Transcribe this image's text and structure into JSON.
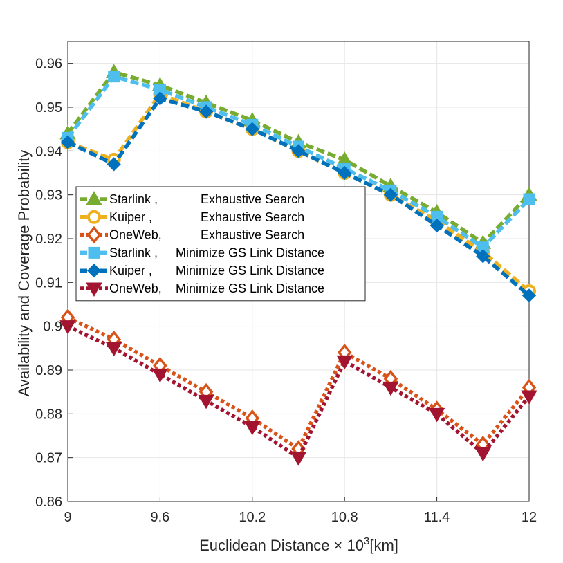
{
  "chart_data": {
    "type": "line",
    "title": "",
    "xlabel": "Euclidean Distance × 10",
    "xlabel_exponent": "3",
    "xlabel_unit": "[km]",
    "ylabel": "Availability and Coverage Probability",
    "xlim": [
      9,
      12
    ],
    "ylim": [
      0.86,
      0.965
    ],
    "xticks": [
      9,
      9.6,
      10.2,
      10.8,
      11.4,
      12
    ],
    "xtick_labels": [
      "9",
      "9.6",
      "10.2",
      "10.8",
      "11.4",
      "12"
    ],
    "yticks": [
      0.86,
      0.87,
      0.88,
      0.89,
      0.9,
      0.91,
      0.92,
      0.93,
      0.94,
      0.95,
      0.96
    ],
    "ytick_labels": [
      "0.86",
      "0.87",
      "0.88",
      "0.89",
      "0.9",
      "0.91",
      "0.92",
      "0.93",
      "0.94",
      "0.95",
      "0.96"
    ],
    "grid": true,
    "legend_position": "middle-left",
    "x": [
      9,
      9.3,
      9.6,
      9.9,
      10.2,
      10.5,
      10.8,
      11.1,
      11.4,
      11.7,
      12
    ],
    "series": [
      {
        "name": "Starlink ,        Exhaustive Search",
        "legend_label": "Starlink ,",
        "legend_method": "Exhaustive Search",
        "color": "#77AC30",
        "marker": "triangle-up",
        "line": "dashed",
        "values": [
          0.944,
          0.958,
          0.955,
          0.951,
          0.947,
          0.942,
          0.938,
          0.932,
          0.926,
          0.919,
          0.93
        ]
      },
      {
        "name": "Kuiper  ,        Exhaustive Search",
        "legend_label": "Kuiper  ,",
        "legend_method": "Exhaustive Search",
        "color": "#EDB120",
        "marker": "circle",
        "line": "dashed",
        "values": [
          0.942,
          0.938,
          0.953,
          0.949,
          0.945,
          0.94,
          0.935,
          0.93,
          0.924,
          0.917,
          0.908
        ]
      },
      {
        "name": "OneWeb,        Exhaustive Search",
        "legend_label": "OneWeb,",
        "legend_method": "Exhaustive Search",
        "color": "#D95319",
        "marker": "diamond",
        "line": "dotted",
        "values": [
          0.902,
          0.897,
          0.891,
          0.885,
          0.879,
          0.872,
          0.894,
          0.888,
          0.881,
          0.873,
          0.886
        ]
      },
      {
        "name": "Starlink ,  Minimize GS Link Distance",
        "legend_label": "Starlink ,",
        "legend_method": "Minimize GS Link Distance",
        "color": "#4DBEEE",
        "marker": "square",
        "line": "dashed",
        "values": [
          0.943,
          0.957,
          0.954,
          0.95,
          0.946,
          0.941,
          0.936,
          0.931,
          0.925,
          0.918,
          0.929
        ]
      },
      {
        "name": "Kuiper  , Minimize GS Link Distance",
        "legend_label": "Kuiper  ,",
        "legend_method": "Minimize GS Link Distance",
        "color": "#0072BD",
        "marker": "x-diamond",
        "line": "dashed",
        "values": [
          0.942,
          0.937,
          0.952,
          0.949,
          0.945,
          0.94,
          0.935,
          0.93,
          0.923,
          0.916,
          0.907
        ]
      },
      {
        "name": "OneWeb, Minimize GS Link Distance",
        "legend_label": "OneWeb,",
        "legend_method": "Minimize GS Link Distance",
        "color": "#A2142F",
        "marker": "triangle-down",
        "line": "dotted",
        "values": [
          0.9,
          0.895,
          0.889,
          0.883,
          0.877,
          0.87,
          0.892,
          0.886,
          0.88,
          0.871,
          0.884
        ]
      }
    ]
  }
}
